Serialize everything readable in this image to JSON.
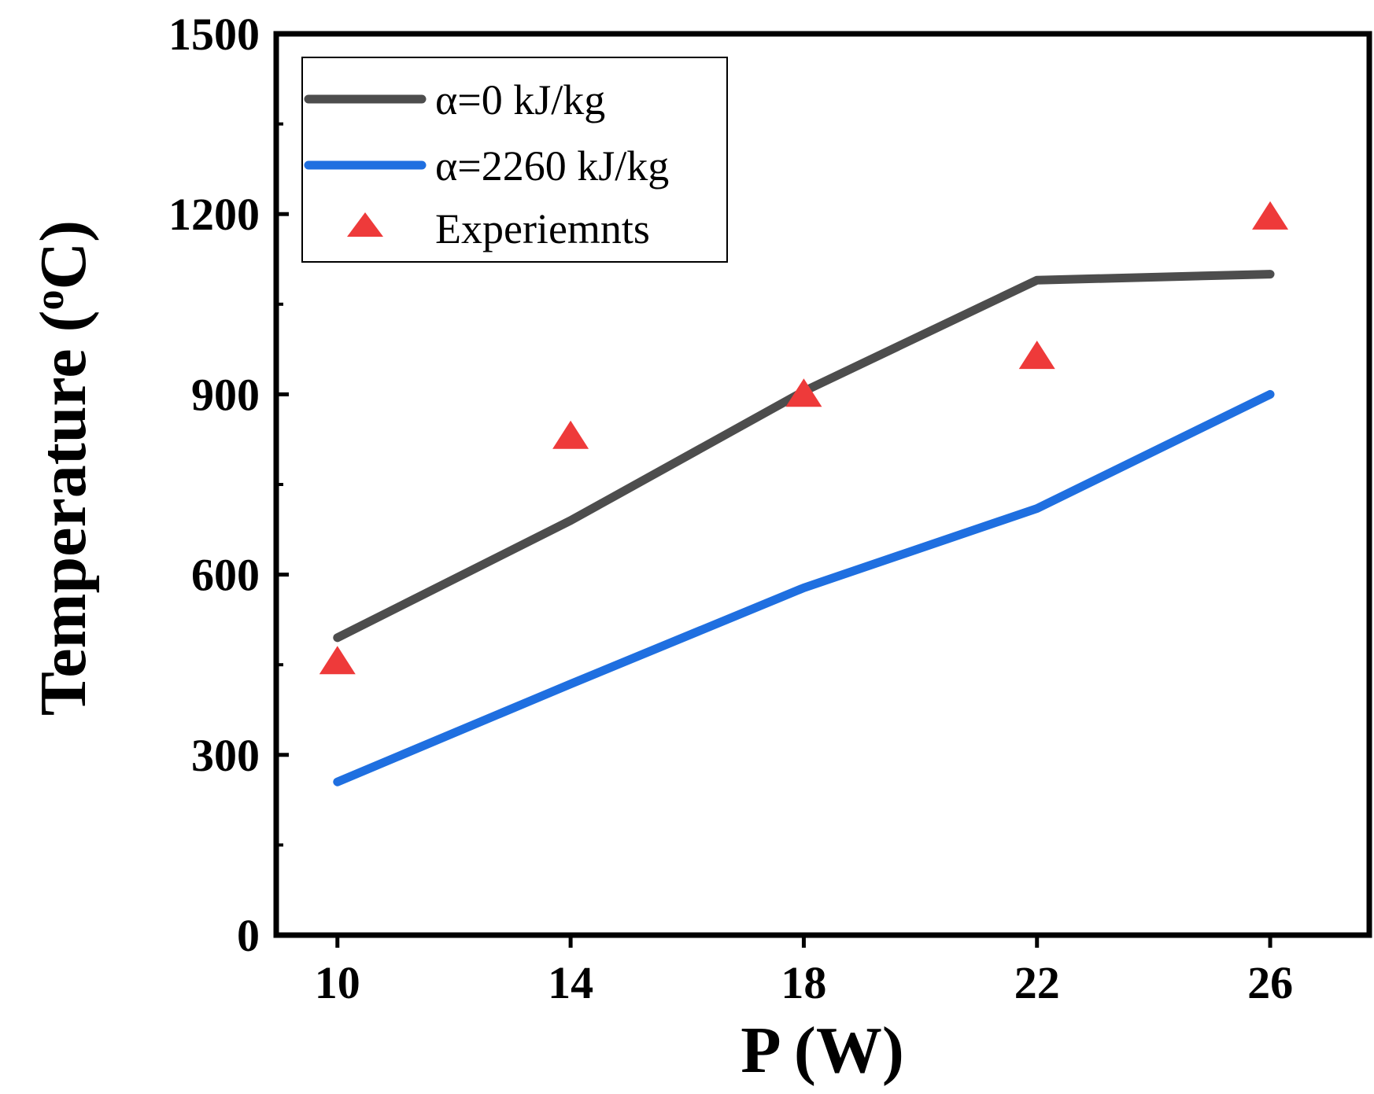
{
  "chart_data": {
    "type": "line",
    "title": "",
    "xlabel": "P (W)",
    "ylabel": "Temperature (",
    "ylabel_unit_sup": "o",
    "ylabel_unit_tail": "C)",
    "x": [
      10,
      14,
      18,
      22,
      26
    ],
    "xticks": [
      10,
      14,
      18,
      22,
      26
    ],
    "yticks": [
      0,
      300,
      600,
      900,
      1200,
      1500
    ],
    "xlim": [
      8.95,
      27.7
    ],
    "ylim": [
      0,
      1500
    ],
    "grid": false,
    "legend_position": "top-left",
    "series": [
      {
        "name": "α=0 kJ/kg",
        "style": "line",
        "color": "#4d4d4d",
        "values": [
          495,
          690,
          905,
          1090,
          1100
        ]
      },
      {
        "name": "α=2260 kJ/kg",
        "style": "line",
        "color": "#1f6fe0",
        "values": [
          255,
          418,
          578,
          710,
          900
        ]
      },
      {
        "name": "Experiemnts",
        "style": "marker-triangle",
        "color": "#ee3a3a",
        "values": [
          450,
          825,
          895,
          958,
          1190
        ]
      }
    ]
  }
}
